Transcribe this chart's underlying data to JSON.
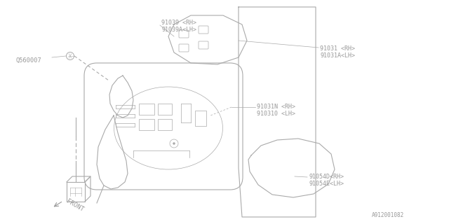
{
  "bg_color": "#ffffff",
  "lc": "#aaaaaa",
  "tc": "#999999",
  "fig_w": 6.4,
  "fig_h": 3.2,
  "dpi": 100,
  "labels": {
    "ref_num": "Q560007",
    "part1": [
      "91039 <RH>",
      "91039A<LH>"
    ],
    "part2": [
      "91031 <RH>",
      "91031A<LH>"
    ],
    "part3": [
      "91031N <RH>",
      "910310 <LH>"
    ],
    "part4": [
      "91054D<RH>",
      "91054E<LH>"
    ],
    "front": "FRONT",
    "diagram_id": "A912001082"
  }
}
